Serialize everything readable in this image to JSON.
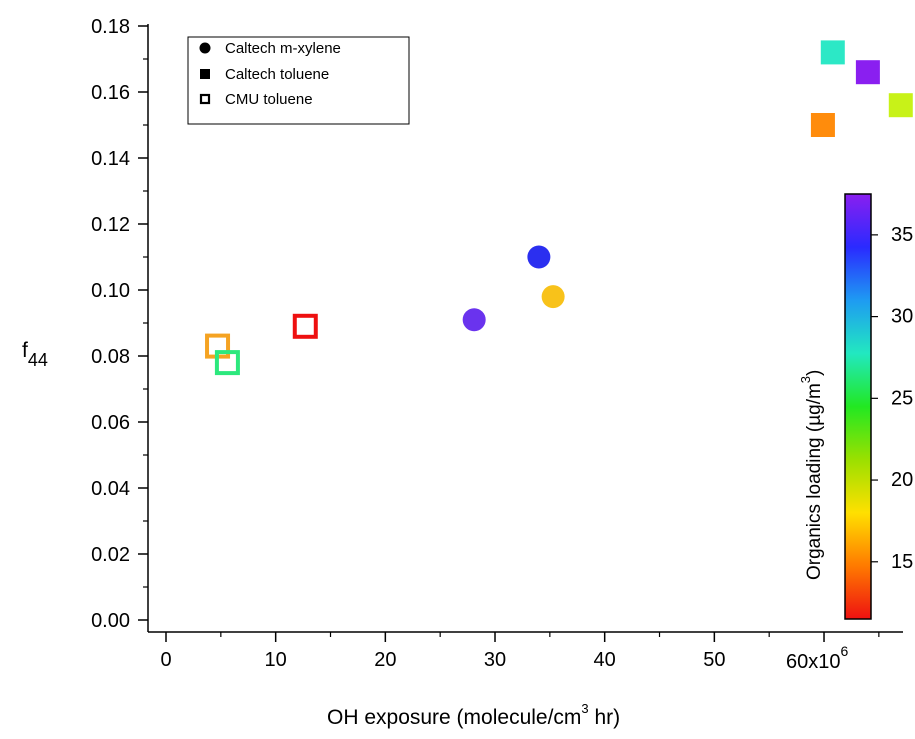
{
  "chart_data": {
    "type": "scatter",
    "title": "",
    "xlabel": "OH exposure (molecule/cm",
    "xlabel_sup": "3",
    "xlabel_tail": " hr)",
    "ylabel": "f",
    "ylabel_sub": "44",
    "xlim": [
      -1.5,
      67
    ],
    "ylim": [
      -0.004,
      0.18
    ],
    "x_ticks": [
      0,
      10,
      20,
      30,
      40,
      50,
      60
    ],
    "x_tick_labels": [
      "0",
      "10",
      "20",
      "30",
      "40",
      "50",
      "60x10"
    ],
    "x_tick_last_sup": "6",
    "y_ticks": [
      0.0,
      0.02,
      0.04,
      0.06,
      0.08,
      0.1,
      0.12,
      0.14,
      0.16,
      0.18
    ],
    "y_tick_labels": [
      "0.00",
      "0.02",
      "0.04",
      "0.06",
      "0.08",
      "0.10",
      "0.12",
      "0.14",
      "0.16",
      "0.18"
    ],
    "grid": false,
    "legend_position": "top-left",
    "series": [
      {
        "name": "Caltech m-xylene",
        "marker": "filled-circle",
        "points": [
          {
            "x": 28.1,
            "y": 0.091,
            "color": "#6a33ee"
          },
          {
            "x": 34.0,
            "y": 0.11,
            "color": "#2b2ff0"
          },
          {
            "x": 35.3,
            "y": 0.098,
            "color": "#f8c21a"
          }
        ]
      },
      {
        "name": "Caltech toluene",
        "marker": "filled-square",
        "points": [
          {
            "x": 59.9,
            "y": 0.15,
            "color": "#ff8c0c"
          },
          {
            "x": 60.8,
            "y": 0.172,
            "color": "#2ce8c6"
          },
          {
            "x": 64.0,
            "y": 0.166,
            "color": "#8a1ff0"
          },
          {
            "x": 67.0,
            "y": 0.156,
            "color": "#c8f218"
          }
        ]
      },
      {
        "name": "CMU toluene",
        "marker": "open-square",
        "points": [
          {
            "x": 4.7,
            "y": 0.083,
            "color": "#f5a322"
          },
          {
            "x": 5.6,
            "y": 0.078,
            "color": "#2ce87d"
          },
          {
            "x": 12.7,
            "y": 0.089,
            "color": "#ee1010"
          }
        ]
      }
    ],
    "colorbar": {
      "label": "Organics loading (µg/m",
      "label_sup": "3",
      "label_tail": ")",
      "range": [
        11.5,
        37.5
      ],
      "ticks": [
        15,
        20,
        25,
        30,
        35
      ],
      "tick_labels": [
        "15",
        "20",
        "25",
        "30",
        "35"
      ],
      "colors": [
        "#ee1111",
        "#ff7a00",
        "#ffe000",
        "#9be000",
        "#22e822",
        "#22e8c0",
        "#1e9bf2",
        "#2a2aff",
        "#8a1ff0"
      ]
    }
  }
}
